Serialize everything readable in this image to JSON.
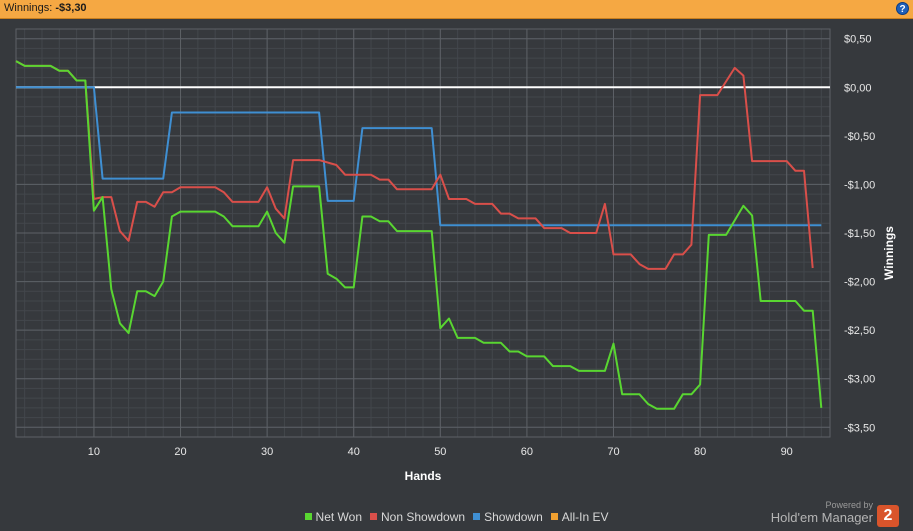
{
  "header": {
    "label": "Winnings:",
    "value": "-$3,30",
    "help_icon": "help-question-icon"
  },
  "colors": {
    "header_bg": "#f5a843",
    "plot_bg": "#36393d",
    "grid": "#4b4f54",
    "zero_line": "#ffffff",
    "net_won": "#59d631",
    "non_showdown": "#d94f4a",
    "showdown": "#3f8fd2",
    "all_in_ev": "#f0a030"
  },
  "branding": {
    "powered": "Powered by",
    "name": "Hold'em Manager",
    "logo": "2"
  },
  "chart_data": {
    "type": "line",
    "xlabel": "Hands",
    "ylabel": "Winnings",
    "xlim": [
      1,
      95
    ],
    "ylim": [
      -3.6,
      0.6
    ],
    "xticks": [
      10,
      20,
      30,
      40,
      50,
      60,
      70,
      80,
      90
    ],
    "yticks": [
      0.5,
      0,
      -0.5,
      -1,
      -1.5,
      -2,
      -2.5,
      -3,
      -3.5
    ],
    "ytick_labels": [
      "$0,50",
      "$0,00",
      "-$0,50",
      "-$1,00",
      "-$1,50",
      "-$2,00",
      "-$2,50",
      "-$3,00",
      "-$3,50"
    ],
    "xtick_labels": [
      "10",
      "20",
      "30",
      "40",
      "50",
      "60",
      "70",
      "80",
      "90"
    ],
    "grid": true,
    "legend_position": "bottom",
    "series": [
      {
        "name": "Net Won",
        "color": "#59d631",
        "points": [
          [
            1,
            0.27
          ],
          [
            2,
            0.22
          ],
          [
            5,
            0.22
          ],
          [
            6,
            0.17
          ],
          [
            7,
            0.17
          ],
          [
            8,
            0.07
          ],
          [
            9,
            0.07
          ],
          [
            10,
            -1.27
          ],
          [
            11,
            -1.13
          ],
          [
            12,
            -2.08
          ],
          [
            13,
            -2.43
          ],
          [
            14,
            -2.53
          ],
          [
            15,
            -2.1
          ],
          [
            16,
            -2.1
          ],
          [
            17,
            -2.15
          ],
          [
            18,
            -2.0
          ],
          [
            19,
            -1.33
          ],
          [
            20,
            -1.28
          ],
          [
            24,
            -1.28
          ],
          [
            25,
            -1.33
          ],
          [
            26,
            -1.43
          ],
          [
            29,
            -1.43
          ],
          [
            30,
            -1.28
          ],
          [
            31,
            -1.5
          ],
          [
            32,
            -1.6
          ],
          [
            33,
            -1.02
          ],
          [
            36,
            -1.02
          ],
          [
            37,
            -1.92
          ],
          [
            38,
            -1.97
          ],
          [
            39,
            -2.06
          ],
          [
            40,
            -2.06
          ],
          [
            41,
            -1.33
          ],
          [
            42,
            -1.33
          ],
          [
            43,
            -1.38
          ],
          [
            44,
            -1.38
          ],
          [
            45,
            -1.48
          ],
          [
            49,
            -1.48
          ],
          [
            50,
            -2.48
          ],
          [
            51,
            -2.38
          ],
          [
            52,
            -2.58
          ],
          [
            54,
            -2.58
          ],
          [
            55,
            -2.63
          ],
          [
            57,
            -2.63
          ],
          [
            58,
            -2.72
          ],
          [
            59,
            -2.72
          ],
          [
            60,
            -2.77
          ],
          [
            62,
            -2.77
          ],
          [
            63,
            -2.87
          ],
          [
            65,
            -2.87
          ],
          [
            66,
            -2.92
          ],
          [
            69,
            -2.92
          ],
          [
            70,
            -2.64
          ],
          [
            71,
            -3.16
          ],
          [
            73,
            -3.16
          ],
          [
            74,
            -3.26
          ],
          [
            75,
            -3.31
          ],
          [
            77,
            -3.31
          ],
          [
            78,
            -3.16
          ],
          [
            79,
            -3.16
          ],
          [
            80,
            -3.06
          ],
          [
            81,
            -1.52
          ],
          [
            83,
            -1.52
          ],
          [
            85,
            -1.22
          ],
          [
            86,
            -1.32
          ],
          [
            87,
            -2.2
          ],
          [
            91,
            -2.2
          ],
          [
            92,
            -2.3
          ],
          [
            93,
            -2.3
          ],
          [
            94,
            -3.3
          ]
        ]
      },
      {
        "name": "Non Showdown",
        "color": "#d94f4a",
        "points": [
          [
            1,
            0.27
          ],
          [
            2,
            0.22
          ],
          [
            5,
            0.22
          ],
          [
            6,
            0.17
          ],
          [
            7,
            0.17
          ],
          [
            8,
            0.07
          ],
          [
            9,
            0.07
          ],
          [
            10,
            -1.15
          ],
          [
            11,
            -1.13
          ],
          [
            12,
            -1.13
          ],
          [
            13,
            -1.48
          ],
          [
            14,
            -1.58
          ],
          [
            15,
            -1.18
          ],
          [
            16,
            -1.18
          ],
          [
            17,
            -1.23
          ],
          [
            18,
            -1.08
          ],
          [
            19,
            -1.08
          ],
          [
            20,
            -1.03
          ],
          [
            24,
            -1.03
          ],
          [
            25,
            -1.08
          ],
          [
            26,
            -1.18
          ],
          [
            29,
            -1.18
          ],
          [
            30,
            -1.03
          ],
          [
            31,
            -1.25
          ],
          [
            32,
            -1.35
          ],
          [
            33,
            -0.75
          ],
          [
            36,
            -0.75
          ],
          [
            38,
            -0.8
          ],
          [
            39,
            -0.9
          ],
          [
            42,
            -0.9
          ],
          [
            43,
            -0.95
          ],
          [
            44,
            -0.95
          ],
          [
            45,
            -1.05
          ],
          [
            49,
            -1.05
          ],
          [
            50,
            -0.9
          ],
          [
            51,
            -1.15
          ],
          [
            53,
            -1.15
          ],
          [
            54,
            -1.2
          ],
          [
            56,
            -1.2
          ],
          [
            57,
            -1.3
          ],
          [
            58,
            -1.3
          ],
          [
            59,
            -1.35
          ],
          [
            61,
            -1.35
          ],
          [
            62,
            -1.45
          ],
          [
            64,
            -1.45
          ],
          [
            65,
            -1.5
          ],
          [
            68,
            -1.5
          ],
          [
            69,
            -1.2
          ],
          [
            70,
            -1.72
          ],
          [
            72,
            -1.72
          ],
          [
            73,
            -1.82
          ],
          [
            74,
            -1.87
          ],
          [
            76,
            -1.87
          ],
          [
            77,
            -1.72
          ],
          [
            78,
            -1.72
          ],
          [
            79,
            -1.62
          ],
          [
            80,
            -0.08
          ],
          [
            82,
            -0.08
          ],
          [
            84,
            0.2
          ],
          [
            85,
            0.12
          ],
          [
            86,
            -0.76
          ],
          [
            90,
            -0.76
          ],
          [
            91,
            -0.86
          ],
          [
            92,
            -0.86
          ],
          [
            93,
            -1.86
          ]
        ]
      },
      {
        "name": "Showdown",
        "color": "#3f8fd2",
        "points": [
          [
            1,
            0.0
          ],
          [
            10,
            0.0
          ],
          [
            11,
            -0.94
          ],
          [
            18,
            -0.94
          ],
          [
            19,
            -0.26
          ],
          [
            36,
            -0.26
          ],
          [
            37,
            -1.17
          ],
          [
            40,
            -1.17
          ],
          [
            41,
            -0.42
          ],
          [
            49,
            -0.42
          ],
          [
            50,
            -1.42
          ],
          [
            94,
            -1.42
          ]
        ]
      },
      {
        "name": "All-In EV",
        "color": "#f0a030",
        "points": []
      }
    ]
  }
}
